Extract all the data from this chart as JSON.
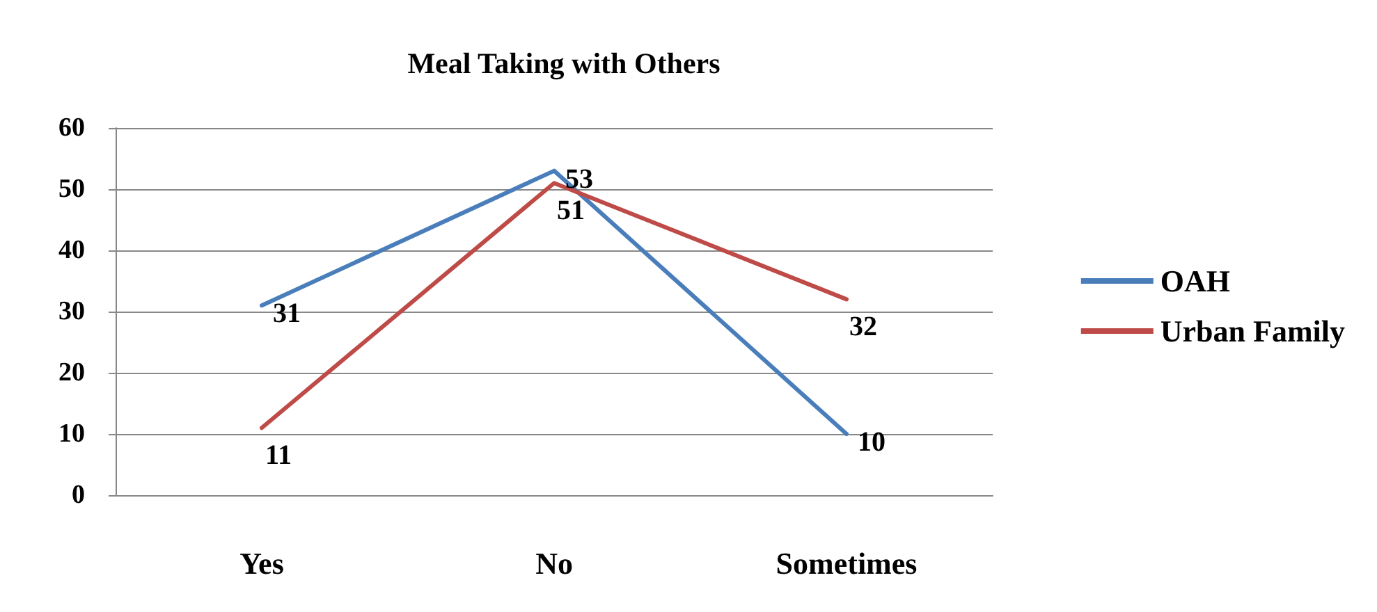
{
  "chart_data": {
    "type": "line",
    "title": "Meal Taking with Others",
    "categories": [
      "Yes",
      "No",
      "Sometimes"
    ],
    "series": [
      {
        "name": "OAH",
        "color": "#4a7ebb",
        "values": [
          31,
          53,
          10
        ]
      },
      {
        "name": "Urban Family",
        "color": "#be4b48",
        "values": [
          11,
          51,
          32
        ]
      }
    ],
    "ylim": [
      0,
      60
    ],
    "yticks": [
      0,
      10,
      20,
      30,
      40,
      50,
      60
    ],
    "grid": "y",
    "legend": "right",
    "marker": "none",
    "line_style": "solid",
    "data_labels": true
  }
}
